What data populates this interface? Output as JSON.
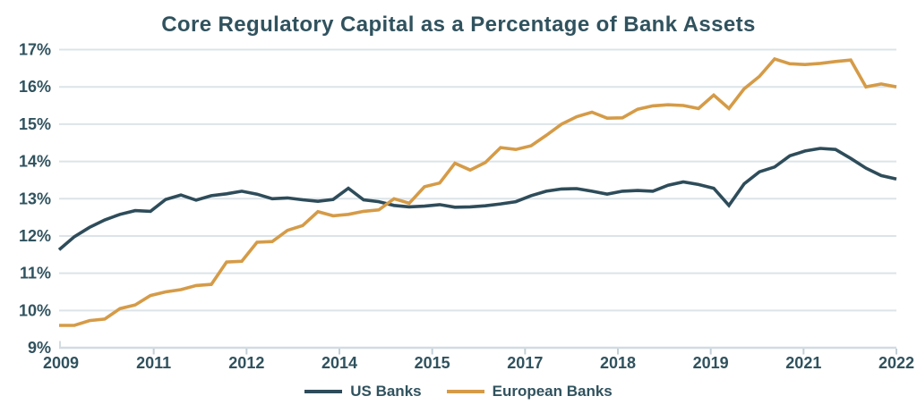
{
  "page": {
    "title": "Core Regulatory Capital as a Percentage of Bank Assets"
  },
  "colors": {
    "background": "#FFFFFF",
    "text": "#30525E",
    "gridline": "#DCE4E9",
    "axis_line": "#D2DCE2",
    "tick": "#C2CFD6",
    "us_line": "#2E4C5A",
    "european_line": "#D59B47"
  },
  "chart_data": {
    "type": "line",
    "title": "Core Regulatory Capital as a Percentage of Bank Assets",
    "grid": "horizontal",
    "legend_position": "bottom-center",
    "x_axis": {
      "tick_labels": [
        "2009",
        "2011",
        "2012",
        "2014",
        "2015",
        "2017",
        "2018",
        "2019",
        "2021",
        "2022"
      ],
      "points_evenly_spaced": true
    },
    "y_axis": {
      "min": 9,
      "max": 17,
      "unit": "%",
      "tick_labels": [
        "9%",
        "10%",
        "11%",
        "12%",
        "13%",
        "14%",
        "15%",
        "16%",
        "17%"
      ]
    },
    "series": [
      {
        "name": "US Banks",
        "color": "#2E4C5A",
        "values": [
          11.63,
          11.98,
          12.23,
          12.43,
          12.58,
          12.68,
          12.66,
          12.98,
          13.1,
          12.96,
          13.08,
          13.13,
          13.2,
          13.12,
          13.0,
          13.02,
          12.97,
          12.93,
          12.98,
          13.28,
          12.97,
          12.92,
          12.82,
          12.78,
          12.8,
          12.84,
          12.77,
          12.78,
          12.81,
          12.86,
          12.92,
          13.08,
          13.2,
          13.26,
          13.27,
          13.2,
          13.12,
          13.2,
          13.22,
          13.2,
          13.36,
          13.45,
          13.38,
          13.28,
          12.82,
          13.4,
          13.72,
          13.85,
          14.15,
          14.28,
          14.35,
          14.32,
          14.08,
          13.82,
          13.62,
          13.53
        ]
      },
      {
        "name": "European Banks",
        "color": "#D59B47",
        "values": [
          9.6,
          9.6,
          9.73,
          9.77,
          10.05,
          10.15,
          10.4,
          10.5,
          10.56,
          10.67,
          10.7,
          11.3,
          11.32,
          11.83,
          11.85,
          12.15,
          12.28,
          12.65,
          12.54,
          12.58,
          12.66,
          12.7,
          13.0,
          12.88,
          13.32,
          13.42,
          13.95,
          13.77,
          13.97,
          14.37,
          14.32,
          14.42,
          14.7,
          15.0,
          15.2,
          15.32,
          15.16,
          15.17,
          15.4,
          15.49,
          15.52,
          15.5,
          15.42,
          15.78,
          15.42,
          15.95,
          16.28,
          16.75,
          16.62,
          16.6,
          16.63,
          16.68,
          16.72,
          16.0,
          16.08,
          16.0
        ]
      }
    ]
  }
}
